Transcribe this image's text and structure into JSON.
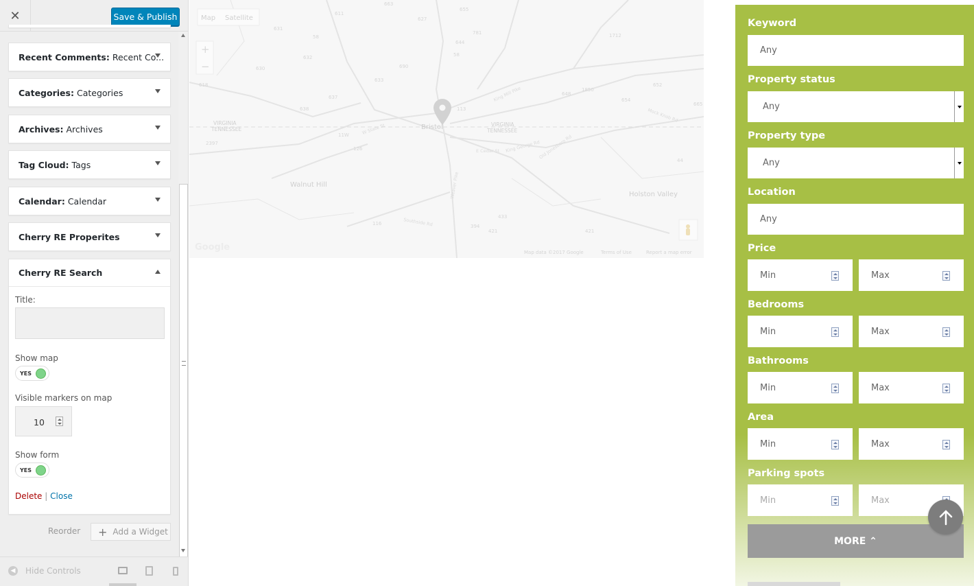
{
  "customizer": {
    "close_icon_glyph": "✕",
    "publish_label": "Save & Publish",
    "widgets": [
      {
        "type": "Recent Comments:",
        "name": "Recent Co..."
      },
      {
        "type": "Categories:",
        "name": "Categories"
      },
      {
        "type": "Archives:",
        "name": "Archives"
      },
      {
        "type": "Tag Cloud:",
        "name": "Tags"
      },
      {
        "type": "Calendar:",
        "name": "Calendar"
      },
      {
        "type": "Cherry RE Properites",
        "name": ""
      },
      {
        "type": "Cherry RE Search",
        "name": ""
      }
    ],
    "open_widget": {
      "title_label": "Title:",
      "title_value": "",
      "show_map_label": "Show map",
      "show_map_value": "YES",
      "markers_label": "Visible markers on map",
      "markers_value": "10",
      "show_form_label": "Show form",
      "show_form_value": "YES",
      "delete_label": "Delete",
      "separator": "|",
      "close_label": "Close"
    },
    "reorder_label": "Reorder",
    "add_widget_label": "Add a Widget",
    "hide_controls_label": "Hide Controls"
  },
  "map": {
    "tab_map": "Map",
    "tab_satellite": "Satellite",
    "zoom_in": "+",
    "zoom_out": "−",
    "places": [
      "Bristol",
      "Walnut Hill",
      "Holston Valley"
    ],
    "state_lines": [
      "VIRGINIA",
      "TENNESSEE",
      "VIRGINIA",
      "TENNESSEE"
    ],
    "roads": [
      "W State St",
      "King Mill Pike",
      "Weaver Pike",
      "Southside Rd",
      "E Cedar St",
      "King George Rd",
      "Old Jonesboro Rd",
      "Mock Knob Rd"
    ],
    "route_numbers": [
      "611",
      "627",
      "655",
      "631",
      "58",
      "644",
      "781",
      "1712",
      "663",
      "632",
      "58",
      "690",
      "630",
      "633",
      "618",
      "637",
      "638",
      "11W",
      "113",
      "648",
      "1850",
      "654",
      "652",
      "665",
      "2397",
      "126",
      "44",
      "433",
      "394",
      "421",
      "116",
      "421"
    ],
    "logo_text": "Google",
    "attribution": "Map data ©2017 Google",
    "terms": "Terms of Use",
    "report": "Report a map error"
  },
  "search_form": {
    "keyword_label": "Keyword",
    "keyword_placeholder": "Any",
    "status_label": "Property status",
    "status_value": "Any",
    "type_label": "Property type",
    "type_value": "Any",
    "location_label": "Location",
    "location_placeholder": "Any",
    "price_label": "Price",
    "bedrooms_label": "Bedrooms",
    "bathrooms_label": "Bathrooms",
    "area_label": "Area",
    "parking_label": "Parking spots",
    "min_placeholder": "Min",
    "max_placeholder": "Max",
    "more_label": "MORE ⌃"
  },
  "colors": {
    "accent_green": "#a7bf45",
    "publish_blue": "#0085ba",
    "delete_red": "#a00",
    "link_blue": "#0073aa"
  }
}
